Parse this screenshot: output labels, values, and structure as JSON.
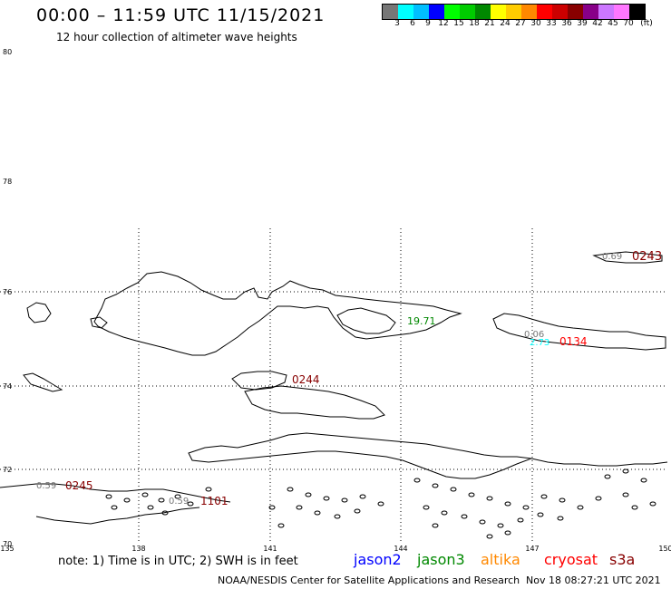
{
  "title": "00:00 – 11:59 UTC 11/15/2021",
  "subtitle": "12 hour collection of altimeter wave heights",
  "colorbar": {
    "colors": [
      "#777777",
      "#00ffff",
      "#00bfff",
      "#0000ff",
      "#00ff00",
      "#00cc00",
      "#008800",
      "#ffff00",
      "#ffcc00",
      "#ff8800",
      "#ff0000",
      "#cc0000",
      "#880000",
      "#880088",
      "#cc77ff",
      "#ff77ff",
      "#000000"
    ],
    "labels": [
      "3",
      "6",
      "9",
      "12",
      "15",
      "18",
      "21",
      "24",
      "27",
      "30",
      "33",
      "36",
      "39",
      "42",
      "45",
      "70",
      "(ft)"
    ]
  },
  "lat_labels": [
    "80",
    "78",
    "76",
    "74",
    "72",
    "70"
  ],
  "lon_labels": [
    "135",
    "138",
    "141",
    "144",
    "147",
    "150"
  ],
  "map_annotations": [
    {
      "text": "0.69",
      "color": "#777777"
    },
    {
      "text": "0243",
      "color": "#880000"
    },
    {
      "text": "19.71",
      "color": "#008800"
    },
    {
      "text": "0.06",
      "color": "#777777"
    },
    {
      "text": "2.73",
      "color": "#00ffff"
    },
    {
      "text": "0134",
      "color": "#ff0000"
    },
    {
      "text": "0244",
      "color": "#880000"
    },
    {
      "text": "0.59",
      "color": "#777777"
    },
    {
      "text": "0245",
      "color": "#880000"
    },
    {
      "text": "0.59",
      "color": "#777777"
    },
    {
      "text": "1101",
      "color": "#880000"
    }
  ],
  "note": "note:  1) Time is in UTC;  2) SWH is in feet",
  "legend": [
    {
      "name": "jason2",
      "color": "#0000ff"
    },
    {
      "name": "jason3",
      "color": "#008800"
    },
    {
      "name": "altika",
      "color": "#ff8800"
    },
    {
      "name": "cryosat",
      "color": "#ff0000"
    },
    {
      "name": "s3a",
      "color": "#880000"
    }
  ],
  "credit": "NOAA/NESDIS Center for Satellite Applications and Research",
  "timestamp": "Nov 18 08:27:21 UTC 2021"
}
